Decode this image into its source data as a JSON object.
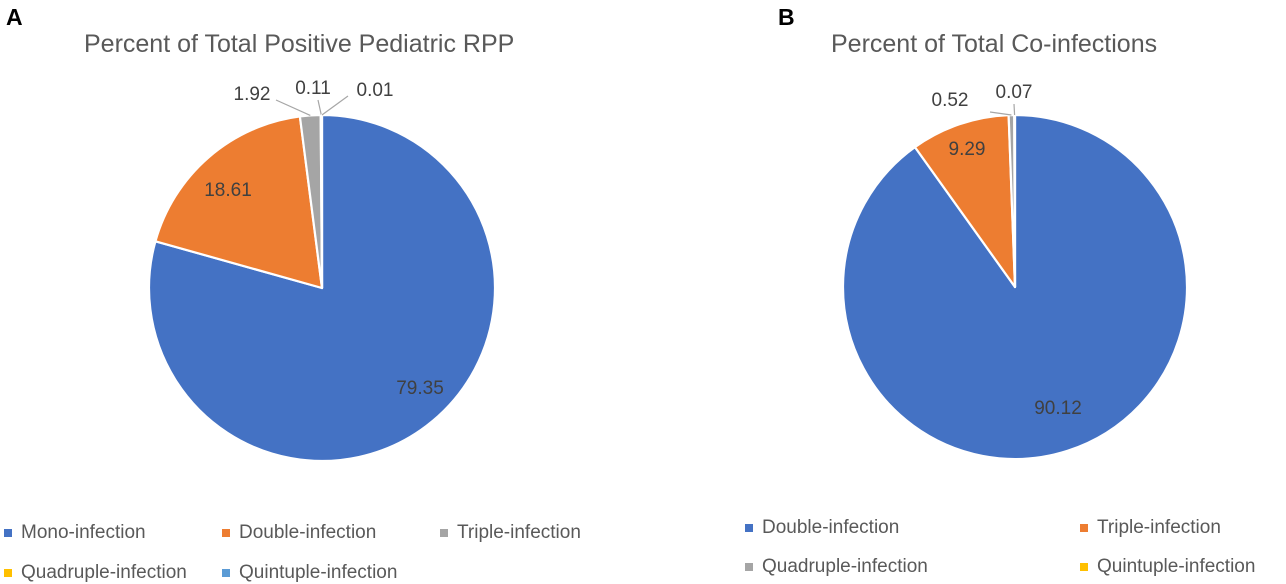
{
  "chart_data": [
    {
      "type": "pie",
      "panel_label": "A",
      "title": "Percent of Total Positive Pediatric RPP",
      "categories": [
        "Mono-infection",
        "Double-infection",
        "Triple-infection",
        "Quadruple-infection",
        "Quintuple-infection"
      ],
      "values": [
        79.35,
        18.61,
        1.92,
        0.11,
        0.01
      ],
      "labels": [
        "79.35",
        "18.61",
        "1.92",
        "0.11",
        "0.01"
      ],
      "colors": [
        "#4472C4",
        "#ED7D31",
        "#A5A5A5",
        "#FFC000",
        "#5B9BD5"
      ],
      "legend_position": "bottom"
    },
    {
      "type": "pie",
      "panel_label": "B",
      "title": "Percent of Total Co-infections",
      "categories": [
        "Double-infection",
        "Triple-infection",
        "Quadruple-infection",
        "Quintuple-infection"
      ],
      "values": [
        90.12,
        9.29,
        0.52,
        0.07
      ],
      "labels": [
        "90.12",
        "9.29",
        "0.52",
        "0.07"
      ],
      "colors": [
        "#4472C4",
        "#ED7D31",
        "#A5A5A5",
        "#FFC000"
      ],
      "legend_position": "bottom"
    }
  ]
}
